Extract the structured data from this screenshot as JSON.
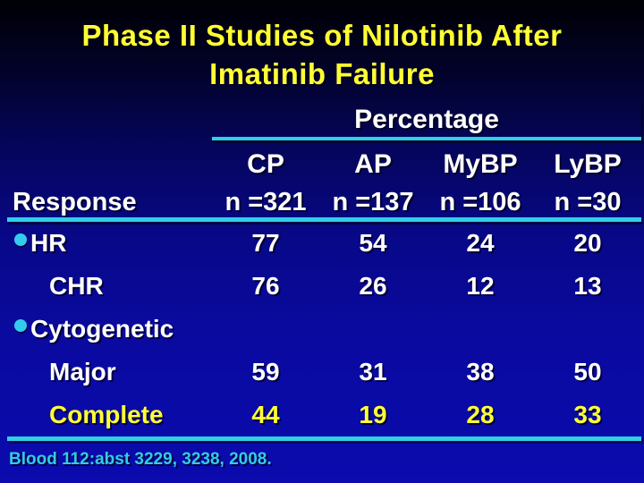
{
  "slide": {
    "title": {
      "line1": "Phase II Studies of Nilotinib After",
      "line2": "Imatinib Failure"
    },
    "footer": "Blood 112:abst 3229, 3238, 2008."
  },
  "chart_data": {
    "type": "table",
    "title": "Phase II Studies of Nilotinib After Imatinib Failure",
    "group_header": "Percentage",
    "row_header": "Response",
    "columns": [
      {
        "label": "CP",
        "n_label": "n =321",
        "n": 321
      },
      {
        "label": "AP",
        "n_label": "n =137",
        "n": 137
      },
      {
        "label": "MyBP",
        "n_label": "n =106",
        "n": 106
      },
      {
        "label": "LyBP",
        "n_label": "n =30",
        "n": 30
      }
    ],
    "rows": [
      {
        "label": "HR",
        "bullet": true,
        "indent": false,
        "highlighted": false,
        "values": [
          77,
          54,
          24,
          20
        ]
      },
      {
        "label": "CHR",
        "bullet": false,
        "indent": true,
        "highlighted": false,
        "values": [
          76,
          26,
          12,
          13
        ]
      },
      {
        "label": "Cytogenetic",
        "bullet": true,
        "indent": false,
        "highlighted": false,
        "values": [
          "",
          "",
          "",
          ""
        ]
      },
      {
        "label": "Major",
        "bullet": false,
        "indent": true,
        "highlighted": false,
        "values": [
          59,
          31,
          38,
          50
        ]
      },
      {
        "label": "Complete",
        "bullet": false,
        "indent": true,
        "highlighted": true,
        "values": [
          44,
          19,
          28,
          33
        ]
      }
    ],
    "layout": {
      "legend": "none",
      "grid": "off",
      "unit": "percent"
    },
    "colors": {
      "title_yellow": "#ffff33",
      "body_white": "#ffffff",
      "highlight_yellow": "#ffff33",
      "rule_cyan": "#2fcfe8",
      "bullet_cyan": "#33ccee",
      "footer_cyan": "#33cce6",
      "background_top": "#000004",
      "background_bottom": "#0b0bae"
    }
  }
}
